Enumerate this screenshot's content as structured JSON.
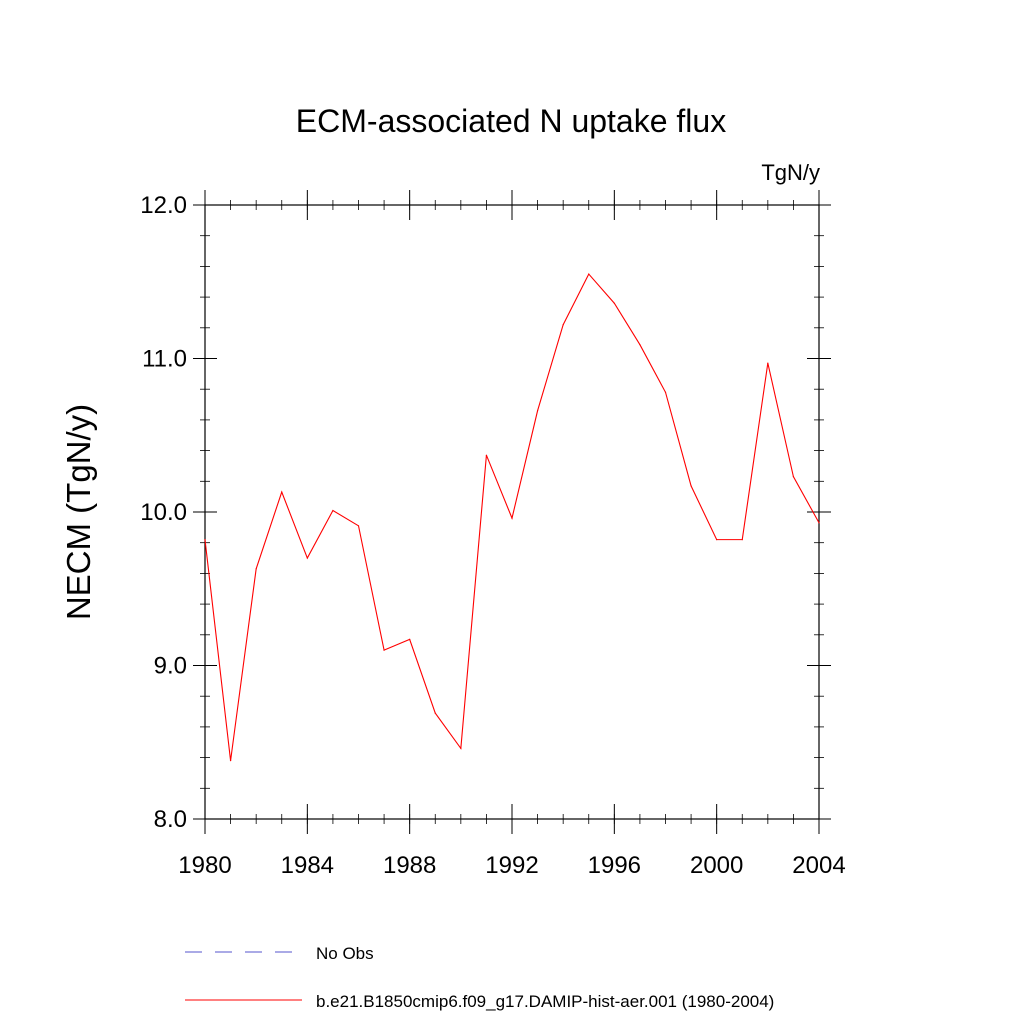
{
  "chart_data": {
    "type": "line",
    "title": "ECM-associated N uptake flux",
    "units_label": "TgN/y",
    "xlabel": "",
    "ylabel": "NECM  (TgN/y)",
    "xlim": [
      1980,
      2004
    ],
    "ylim": [
      8.0,
      12.0
    ],
    "x_ticks": [
      1980,
      1984,
      1988,
      1992,
      1996,
      2000,
      2004
    ],
    "x_tick_labels": [
      "1980",
      "1984",
      "1988",
      "1992",
      "1996",
      "2000",
      "2004"
    ],
    "y_ticks": [
      8.0,
      9.0,
      10.0,
      11.0,
      12.0
    ],
    "y_tick_labels": [
      "8.0",
      "9.0",
      "10.0",
      "11.0",
      "12.0"
    ],
    "y_minor_step": 0.2,
    "x_minor_step": 1,
    "grid": false,
    "legend_position": "bottom",
    "series": [
      {
        "name": "b.e21.B1850cmip6.f09_g17.DAMIP-hist-aer.001 (1980-2004)",
        "color": "#ff0000",
        "style": "solid",
        "x": [
          1980,
          1981,
          1982,
          1983,
          1984,
          1985,
          1986,
          1987,
          1988,
          1989,
          1990,
          1991,
          1992,
          1993,
          1994,
          1995,
          1996,
          1997,
          1998,
          1999,
          2000,
          2001,
          2002,
          2003,
          2004
        ],
        "values": [
          9.82,
          8.38,
          9.63,
          10.13,
          9.7,
          10.01,
          9.91,
          9.1,
          9.17,
          8.69,
          8.46,
          10.37,
          9.96,
          10.66,
          11.22,
          11.55,
          11.36,
          11.09,
          10.78,
          10.17,
          9.82,
          9.82,
          10.97,
          10.23,
          9.93
        ]
      }
    ],
    "legend": [
      {
        "label": "No Obs",
        "color": "#5555cc",
        "style": "dashed"
      },
      {
        "label": "b.e21.B1850cmip6.f09_g17.DAMIP-hist-aer.001 (1980-2004)",
        "color": "#ff0000",
        "style": "solid"
      }
    ]
  }
}
